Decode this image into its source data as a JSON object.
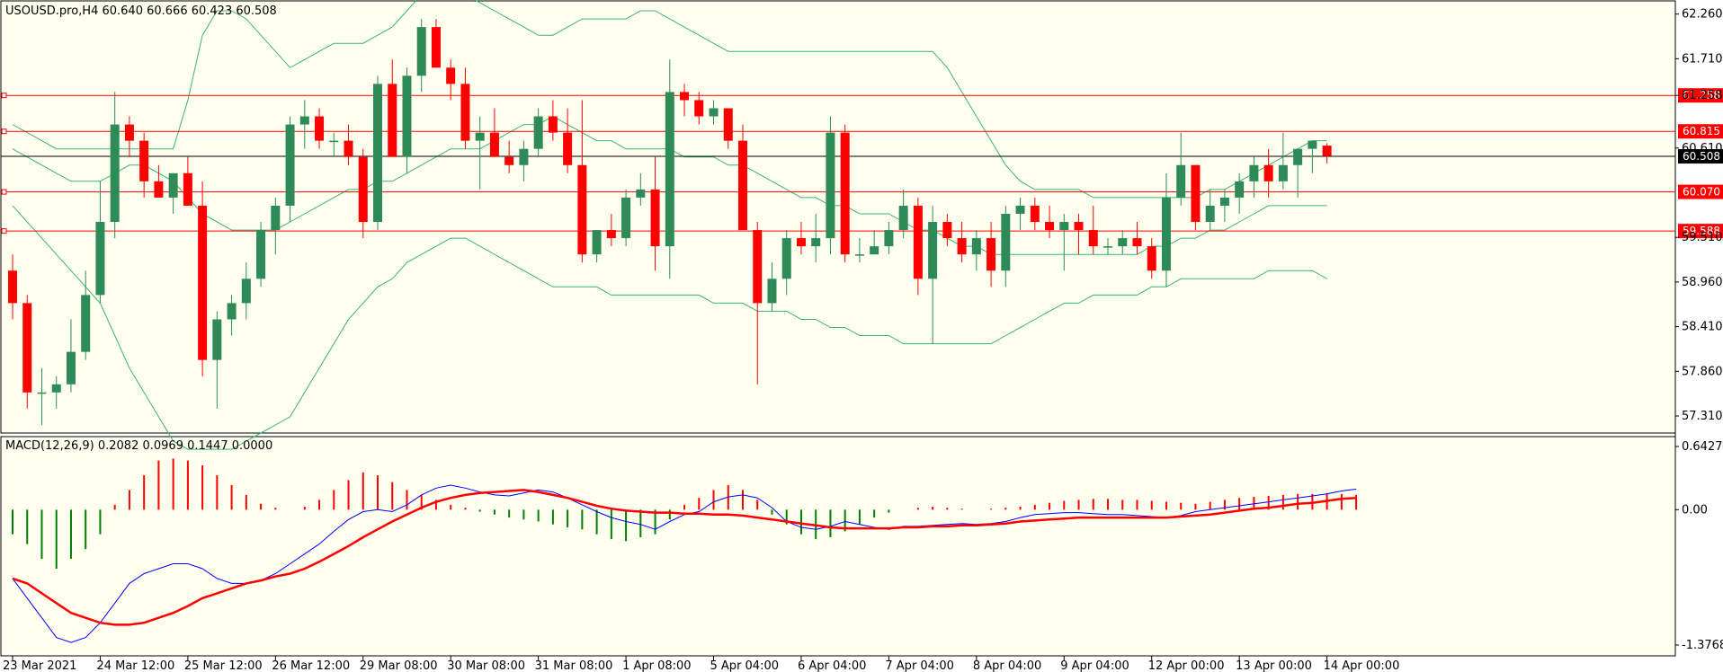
{
  "colors": {
    "background": "#fffff0",
    "bull": "#2e8b57",
    "bear": "#ff0000",
    "bands": "#3cb371",
    "level": "#ff0000",
    "current_price": "#000000",
    "macd_line": "#0000ff",
    "signal_line": "#ff0000",
    "hist_pos": "#ff0000",
    "hist_neg": "#008000"
  },
  "chart_data": [
    {
      "type": "candlestick",
      "title": "USOUSD.pro,H4  60.640 60.666 60.423 60.508",
      "ylim": [
        57.1,
        62.4
      ],
      "y_ticks": [
        "62.260",
        "61.710",
        "61.258",
        "60.610",
        "59.510",
        "58.960",
        "58.410",
        "57.860",
        "57.310"
      ],
      "y_tick_values": [
        62.26,
        61.71,
        61.258,
        60.61,
        59.51,
        58.96,
        58.41,
        57.86,
        57.31
      ],
      "x_labels": [
        "23 Mar 2021",
        "24 Mar 12:00",
        "25 Mar 12:00",
        "26 Mar 12:00",
        "29 Mar 08:00",
        "30 Mar 08:00",
        "31 Mar 08:00",
        "1 Apr 08:00",
        "5 Apr 04:00",
        "6 Apr 04:00",
        "7 Apr 04:00",
        "8 Apr 04:00",
        "9 Apr 04:00",
        "12 Apr 00:00",
        "13 Apr 00:00",
        "14 Apr 00:00"
      ],
      "x_label_positions": [
        0,
        6,
        12,
        18,
        24,
        30,
        36,
        42,
        48,
        54,
        60,
        66,
        72,
        78,
        84,
        90
      ],
      "levels": [
        {
          "label": "61.258",
          "value": 61.258
        },
        {
          "label": "60.815",
          "value": 60.815
        },
        {
          "label": "60.070",
          "value": 60.07
        },
        {
          "label": "59.588",
          "value": 59.588
        }
      ],
      "current_price": {
        "label": "60.508",
        "value": 60.508
      },
      "candles": [
        [
          59.1,
          59.3,
          58.5,
          58.7
        ],
        [
          58.7,
          58.8,
          57.4,
          57.6
        ],
        [
          57.6,
          57.9,
          57.2,
          57.6
        ],
        [
          57.6,
          57.8,
          57.4,
          57.7
        ],
        [
          57.7,
          58.5,
          57.6,
          58.1
        ],
        [
          58.1,
          59.1,
          58.0,
          58.8
        ],
        [
          58.8,
          60.2,
          58.7,
          59.7
        ],
        [
          59.7,
          61.3,
          59.5,
          60.9
        ],
        [
          60.9,
          61.0,
          60.5,
          60.7
        ],
        [
          60.7,
          60.8,
          60.0,
          60.2
        ],
        [
          60.2,
          60.4,
          60.0,
          60.0
        ],
        [
          60.0,
          60.3,
          59.8,
          60.3
        ],
        [
          60.3,
          60.5,
          59.9,
          59.9
        ],
        [
          59.9,
          60.2,
          57.8,
          58.0
        ],
        [
          58.0,
          58.6,
          57.4,
          58.5
        ],
        [
          58.5,
          58.8,
          58.3,
          58.7
        ],
        [
          58.7,
          59.2,
          58.5,
          59.0
        ],
        [
          59.0,
          59.7,
          58.9,
          59.6
        ],
        [
          59.6,
          60.0,
          59.3,
          59.9
        ],
        [
          59.9,
          61.0,
          59.7,
          60.9
        ],
        [
          60.9,
          61.2,
          60.6,
          61.0
        ],
        [
          61.0,
          61.1,
          60.6,
          60.7
        ],
        [
          60.7,
          60.8,
          60.5,
          60.7
        ],
        [
          60.7,
          60.9,
          60.4,
          60.5
        ],
        [
          60.5,
          60.6,
          59.5,
          59.7
        ],
        [
          59.7,
          61.5,
          59.6,
          61.4
        ],
        [
          61.4,
          61.7,
          60.5,
          60.5
        ],
        [
          60.5,
          61.6,
          60.3,
          61.5
        ],
        [
          61.5,
          62.2,
          61.3,
          62.1
        ],
        [
          62.1,
          62.2,
          61.6,
          61.6
        ],
        [
          61.6,
          61.7,
          61.2,
          61.4
        ],
        [
          61.4,
          61.6,
          60.6,
          60.7
        ],
        [
          60.7,
          61.0,
          60.1,
          60.8
        ],
        [
          60.8,
          61.1,
          60.5,
          60.5
        ],
        [
          60.5,
          60.7,
          60.3,
          60.4
        ],
        [
          60.4,
          60.7,
          60.2,
          60.6
        ],
        [
          60.6,
          61.1,
          60.5,
          61.0
        ],
        [
          61.0,
          61.2,
          60.7,
          60.8
        ],
        [
          60.8,
          61.1,
          60.3,
          60.4
        ],
        [
          60.4,
          61.2,
          59.2,
          59.3
        ],
        [
          59.3,
          59.6,
          59.2,
          59.6
        ],
        [
          59.6,
          59.8,
          59.4,
          59.5
        ],
        [
          59.5,
          60.1,
          59.4,
          60.0
        ],
        [
          60.0,
          60.3,
          59.9,
          60.1
        ],
        [
          60.1,
          60.5,
          59.1,
          59.4
        ],
        [
          59.4,
          61.7,
          59.0,
          61.3
        ],
        [
          61.3,
          61.4,
          61.0,
          61.2
        ],
        [
          61.2,
          61.3,
          60.9,
          61.0
        ],
        [
          61.0,
          61.2,
          60.9,
          61.1
        ],
        [
          61.1,
          61.1,
          60.6,
          60.7
        ],
        [
          60.7,
          60.9,
          59.6,
          59.6
        ],
        [
          59.6,
          59.7,
          57.7,
          58.7
        ],
        [
          58.7,
          59.2,
          58.6,
          59.0
        ],
        [
          59.0,
          59.6,
          58.8,
          59.5
        ],
        [
          59.5,
          59.7,
          59.3,
          59.4
        ],
        [
          59.4,
          59.8,
          59.2,
          59.5
        ],
        [
          59.5,
          61.0,
          59.3,
          60.8
        ],
        [
          60.8,
          60.9,
          59.2,
          59.3
        ],
        [
          59.3,
          59.5,
          59.2,
          59.3
        ],
        [
          59.3,
          59.6,
          59.3,
          59.4
        ],
        [
          59.4,
          59.7,
          59.3,
          59.6
        ],
        [
          59.6,
          60.1,
          59.5,
          59.9
        ],
        [
          59.9,
          60.0,
          58.8,
          59.0
        ],
        [
          59.0,
          59.9,
          58.2,
          59.7
        ],
        [
          59.7,
          59.8,
          59.4,
          59.5
        ],
        [
          59.5,
          59.7,
          59.2,
          59.3
        ],
        [
          59.3,
          59.6,
          59.1,
          59.5
        ],
        [
          59.5,
          59.7,
          58.9,
          59.1
        ],
        [
          59.1,
          59.9,
          58.9,
          59.8
        ],
        [
          59.8,
          60.0,
          59.6,
          59.9
        ],
        [
          59.9,
          60.0,
          59.6,
          59.7
        ],
        [
          59.7,
          59.9,
          59.5,
          59.6
        ],
        [
          59.6,
          59.8,
          59.1,
          59.7
        ],
        [
          59.7,
          59.8,
          59.3,
          59.6
        ],
        [
          59.6,
          59.9,
          59.3,
          59.4
        ],
        [
          59.4,
          59.5,
          59.3,
          59.4
        ],
        [
          59.4,
          59.6,
          59.3,
          59.5
        ],
        [
          59.5,
          59.7,
          59.3,
          59.4
        ],
        [
          59.4,
          59.5,
          59.0,
          59.1
        ],
        [
          59.1,
          60.3,
          58.9,
          60.0
        ],
        [
          60.0,
          60.8,
          59.9,
          60.4
        ],
        [
          60.4,
          60.4,
          59.6,
          59.7
        ],
        [
          59.7,
          60.1,
          59.6,
          59.9
        ],
        [
          59.9,
          60.1,
          59.7,
          60.0
        ],
        [
          60.0,
          60.3,
          59.8,
          60.2
        ],
        [
          60.2,
          60.5,
          60.0,
          60.4
        ],
        [
          60.4,
          60.6,
          60.0,
          60.2
        ],
        [
          60.2,
          60.8,
          60.1,
          60.4
        ],
        [
          60.4,
          60.6,
          60.0,
          60.6
        ],
        [
          60.6,
          60.7,
          60.3,
          60.7
        ],
        [
          60.64,
          60.67,
          60.42,
          60.51
        ]
      ],
      "bands_upper": [
        60.9,
        60.8,
        60.7,
        60.6,
        60.6,
        60.6,
        60.6,
        60.6,
        60.6,
        60.6,
        60.6,
        60.6,
        61.2,
        62.0,
        62.3,
        62.3,
        62.2,
        62.0,
        61.8,
        61.6,
        61.7,
        61.8,
        61.9,
        61.9,
        61.9,
        62.0,
        62.1,
        62.3,
        62.5,
        62.6,
        62.6,
        62.5,
        62.4,
        62.3,
        62.2,
        62.1,
        62.0,
        62.0,
        62.1,
        62.2,
        62.2,
        62.2,
        62.2,
        62.3,
        62.3,
        62.2,
        62.1,
        62.0,
        61.9,
        61.8,
        61.8,
        61.8,
        61.8,
        61.8,
        61.8,
        61.8,
        61.8,
        61.8,
        61.8,
        61.8,
        61.8,
        61.8,
        61.8,
        61.8,
        61.6,
        61.3,
        61.0,
        60.7,
        60.4,
        60.2,
        60.1,
        60.1,
        60.1,
        60.1,
        60.0,
        60.0,
        60.0,
        60.0,
        60.0,
        60.0,
        60.0,
        60.0,
        60.1,
        60.1,
        60.2,
        60.3,
        60.4,
        60.5,
        60.6,
        60.7,
        60.7
      ],
      "bands_middle": [
        60.6,
        60.5,
        60.4,
        60.3,
        60.2,
        60.2,
        60.2,
        60.3,
        60.4,
        60.4,
        60.3,
        60.2,
        60.0,
        59.8,
        59.7,
        59.6,
        59.6,
        59.6,
        59.6,
        59.7,
        59.8,
        59.9,
        60.0,
        60.1,
        60.1,
        60.2,
        60.2,
        60.3,
        60.4,
        60.5,
        60.6,
        60.6,
        60.6,
        60.7,
        60.8,
        60.9,
        60.9,
        61.0,
        60.9,
        60.8,
        60.7,
        60.7,
        60.6,
        60.6,
        60.6,
        60.6,
        60.5,
        60.5,
        60.5,
        60.4,
        60.4,
        60.3,
        60.2,
        60.1,
        60.0,
        60.0,
        59.9,
        59.9,
        59.8,
        59.8,
        59.8,
        59.7,
        59.6,
        59.6,
        59.5,
        59.4,
        59.4,
        59.3,
        59.3,
        59.3,
        59.3,
        59.3,
        59.3,
        59.3,
        59.3,
        59.3,
        59.3,
        59.3,
        59.4,
        59.4,
        59.5,
        59.5,
        59.6,
        59.6,
        59.7,
        59.8,
        59.9,
        59.9,
        59.9,
        59.9,
        59.9
      ],
      "bands_lower": [
        59.9,
        59.7,
        59.5,
        59.3,
        59.1,
        58.9,
        58.7,
        58.3,
        57.9,
        57.6,
        57.3,
        57.0,
        56.9,
        56.9,
        56.9,
        56.9,
        57.0,
        57.1,
        57.2,
        57.3,
        57.6,
        57.9,
        58.2,
        58.5,
        58.7,
        58.9,
        59.0,
        59.2,
        59.3,
        59.4,
        59.5,
        59.5,
        59.4,
        59.3,
        59.2,
        59.1,
        59.0,
        58.9,
        58.9,
        58.9,
        58.9,
        58.8,
        58.8,
        58.8,
        58.8,
        58.8,
        58.8,
        58.8,
        58.7,
        58.7,
        58.7,
        58.6,
        58.6,
        58.6,
        58.5,
        58.5,
        58.4,
        58.4,
        58.3,
        58.3,
        58.3,
        58.2,
        58.2,
        58.2,
        58.2,
        58.2,
        58.2,
        58.2,
        58.3,
        58.4,
        58.5,
        58.6,
        58.7,
        58.7,
        58.8,
        58.8,
        58.8,
        58.8,
        58.9,
        58.9,
        59.0,
        59.0,
        59.0,
        59.0,
        59.0,
        59.0,
        59.1,
        59.1,
        59.1,
        59.1,
        59.0
      ]
    },
    {
      "type": "macd",
      "title": "MACD(12,26,9) 0.2082 0.0969 0.1447 0.0000",
      "ylim": [
        -1.3768,
        0.6427
      ],
      "y_ticks": [
        "0.6427",
        "0.00",
        "-1.3768"
      ],
      "y_tick_values": [
        0.6427,
        0.0,
        -1.3768
      ],
      "histogram": [
        -0.25,
        -0.35,
        -0.5,
        -0.6,
        -0.5,
        -0.4,
        -0.25,
        0.05,
        0.2,
        0.35,
        0.5,
        0.52,
        0.5,
        0.45,
        0.35,
        0.25,
        0.15,
        0.06,
        0.02,
        0.0,
        0.03,
        0.1,
        0.2,
        0.3,
        0.38,
        0.35,
        0.28,
        0.2,
        0.15,
        0.1,
        0.05,
        0.02,
        -0.02,
        -0.05,
        -0.08,
        -0.1,
        -0.12,
        -0.15,
        -0.18,
        -0.2,
        -0.25,
        -0.3,
        -0.32,
        -0.28,
        -0.25,
        -0.1,
        0.05,
        0.12,
        0.2,
        0.25,
        0.2,
        0.1,
        -0.05,
        -0.15,
        -0.25,
        -0.3,
        -0.28,
        -0.22,
        -0.15,
        -0.08,
        -0.03,
        0.0,
        0.02,
        0.03,
        0.02,
        0.01,
        0.0,
        0.01,
        0.02,
        0.03,
        0.05,
        0.07,
        0.09,
        0.1,
        0.11,
        0.11,
        0.1,
        0.1,
        0.09,
        0.08,
        0.07,
        0.06,
        0.08,
        0.1,
        0.12,
        0.13,
        0.14,
        0.15,
        0.16,
        0.16,
        0.17,
        0.16,
        0.15
      ],
      "macd": [
        -0.7,
        -0.9,
        -1.1,
        -1.3,
        -1.35,
        -1.3,
        -1.15,
        -0.95,
        -0.75,
        -0.65,
        -0.6,
        -0.55,
        -0.55,
        -0.6,
        -0.7,
        -0.75,
        -0.75,
        -0.72,
        -0.65,
        -0.55,
        -0.45,
        -0.35,
        -0.22,
        -0.1,
        -0.02,
        0.0,
        -0.02,
        0.05,
        0.15,
        0.22,
        0.25,
        0.22,
        0.18,
        0.15,
        0.14,
        0.17,
        0.2,
        0.18,
        0.12,
        0.05,
        -0.02,
        -0.08,
        -0.12,
        -0.15,
        -0.2,
        -0.12,
        -0.05,
        -0.02,
        0.08,
        0.13,
        0.15,
        0.12,
        0.02,
        -0.12,
        -0.18,
        -0.2,
        -0.17,
        -0.12,
        -0.15,
        -0.18,
        -0.2,
        -0.17,
        -0.17,
        -0.16,
        -0.15,
        -0.14,
        -0.15,
        -0.14,
        -0.12,
        -0.08,
        -0.05,
        -0.04,
        -0.03,
        -0.03,
        -0.04,
        -0.05,
        -0.05,
        -0.06,
        -0.07,
        -0.08,
        -0.06,
        -0.02,
        0.0,
        0.02,
        0.04,
        0.06,
        0.08,
        0.1,
        0.12,
        0.14,
        0.16,
        0.19,
        0.21
      ],
      "signal": [
        -0.7,
        -0.75,
        -0.85,
        -0.95,
        -1.05,
        -1.1,
        -1.15,
        -1.17,
        -1.17,
        -1.15,
        -1.1,
        -1.05,
        -0.98,
        -0.9,
        -0.85,
        -0.8,
        -0.75,
        -0.72,
        -0.68,
        -0.65,
        -0.6,
        -0.53,
        -0.45,
        -0.37,
        -0.28,
        -0.2,
        -0.12,
        -0.05,
        0.02,
        0.08,
        0.12,
        0.15,
        0.17,
        0.18,
        0.19,
        0.2,
        0.18,
        0.15,
        0.12,
        0.08,
        0.04,
        0.01,
        -0.01,
        -0.02,
        -0.03,
        -0.03,
        -0.04,
        -0.04,
        -0.05,
        -0.05,
        -0.06,
        -0.08,
        -0.1,
        -0.12,
        -0.14,
        -0.16,
        -0.18,
        -0.19,
        -0.19,
        -0.19,
        -0.19,
        -0.18,
        -0.18,
        -0.17,
        -0.17,
        -0.16,
        -0.16,
        -0.15,
        -0.14,
        -0.12,
        -0.11,
        -0.1,
        -0.09,
        -0.08,
        -0.08,
        -0.08,
        -0.08,
        -0.08,
        -0.08,
        -0.08,
        -0.07,
        -0.06,
        -0.05,
        -0.03,
        -0.01,
        0.01,
        0.02,
        0.04,
        0.06,
        0.07,
        0.09,
        0.11,
        0.12
      ]
    }
  ]
}
